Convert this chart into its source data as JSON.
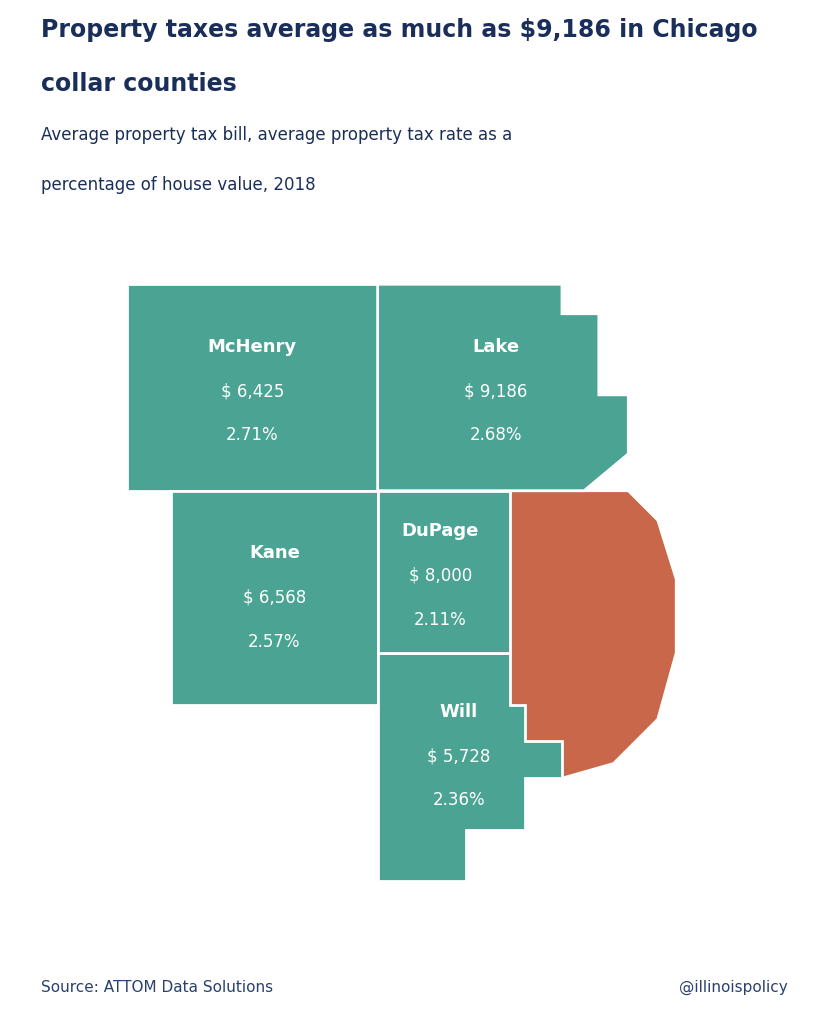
{
  "title_line1": "Property taxes average as much as $9,186 in Chicago",
  "title_line2": "collar counties",
  "subtitle_line1": "Average property tax bill, average property tax rate as a",
  "subtitle_line2": "percentage of house value, 2018",
  "source": "Source: ATTOM Data Solutions",
  "handle": "@illinoispolicy",
  "bg_color": "#ffffff",
  "title_color": "#1a2e5a",
  "subtitle_color": "#1a2e5a",
  "footer_color": "#2a4070",
  "teal_color": "#4aa393",
  "orange_color": "#c8674a",
  "text_color": "#ffffff",
  "border_color": "#ffffff",
  "counties": {
    "McHenry": {
      "value": "$ 6,425",
      "rate": "2.71%"
    },
    "Lake": {
      "value": "$ 9,186",
      "rate": "2.68%"
    },
    "Kane": {
      "value": "$ 6,568",
      "rate": "2.57%"
    },
    "DuPage": {
      "value": "$ 8,000",
      "rate": "2.11%"
    },
    "Will": {
      "value": "$ 5,728",
      "rate": "2.36%"
    }
  }
}
